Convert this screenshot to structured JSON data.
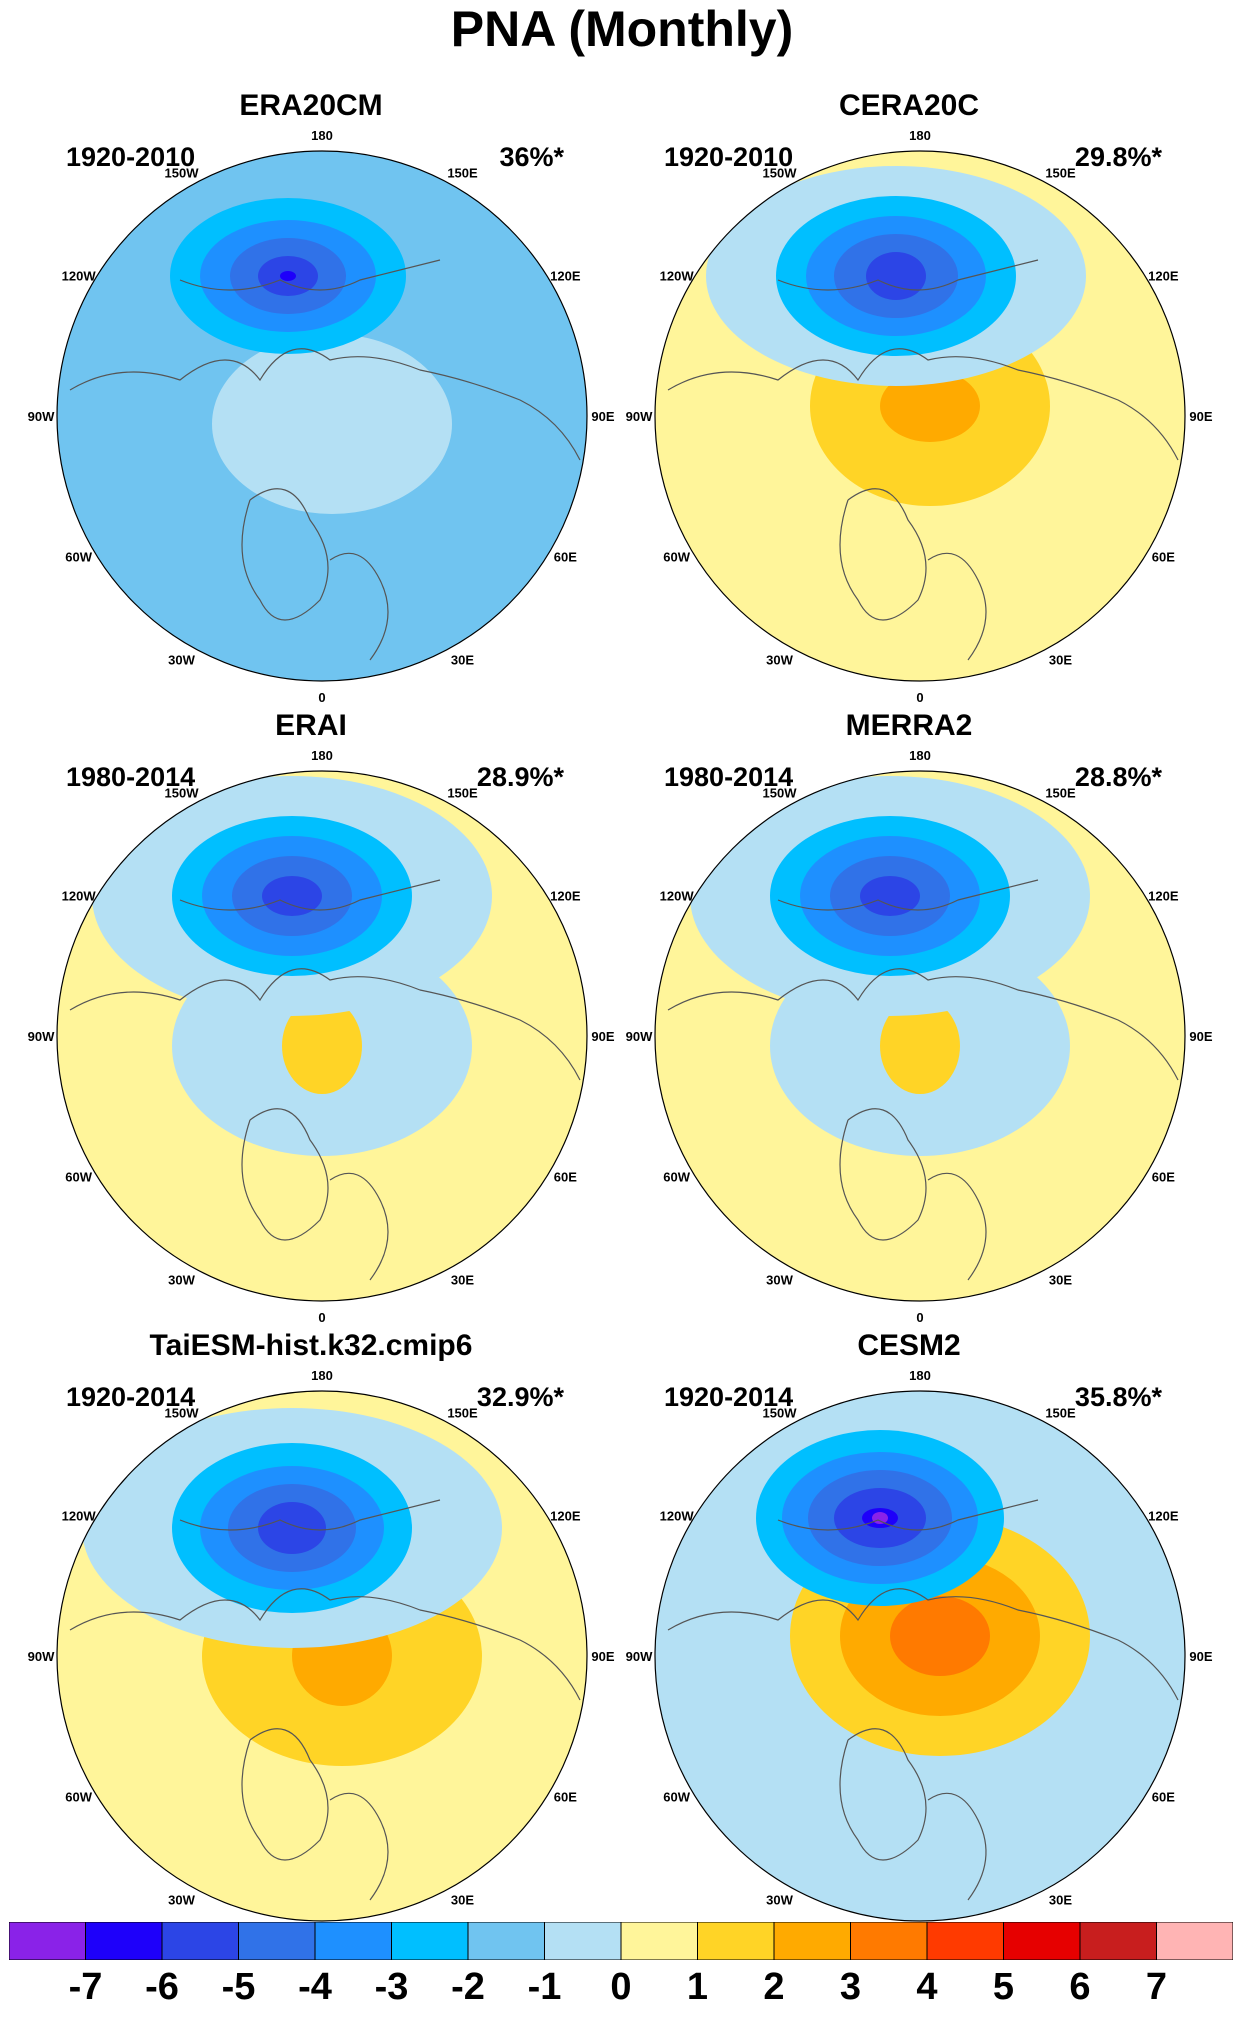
{
  "title": "PNA (Monthly)",
  "colors": {
    "levels": [
      "#8a22e8",
      "#1e00fa",
      "#2c45e6",
      "#3072e8",
      "#1e90ff",
      "#00bfff",
      "#70c4f0",
      "#b4e0f4",
      "#fff59a",
      "#ffd426",
      "#ffaa00",
      "#ff7a00",
      "#ff3a00",
      "#e60000",
      "#c81e1e",
      "#ffb4b4"
    ],
    "land_outline": "#555555"
  },
  "longitude_labels": [
    "180",
    "150E",
    "120E",
    "90E",
    "60E",
    "30E",
    "0",
    "30W",
    "60W",
    "90W",
    "120W",
    "150W"
  ],
  "panels": [
    {
      "name": "ERA20CM",
      "period": "1920-2010",
      "variance": "36%*"
    },
    {
      "name": "CERA20C",
      "period": "1920-2010",
      "variance": "29.8%*"
    },
    {
      "name": "ERAI",
      "period": "1980-2014",
      "variance": "28.9%*"
    },
    {
      "name": "MERRA2",
      "period": "1980-2014",
      "variance": "28.8%*"
    },
    {
      "name": "TaiESM-hist.k32.cmip6",
      "period": "1920-2014",
      "variance": "32.9%*"
    },
    {
      "name": "CESM2",
      "period": "1920-2014",
      "variance": "35.8%*"
    }
  ],
  "colorbar": {
    "labels": [
      "-7",
      "-6",
      "-5",
      "-4",
      "-3",
      "-2",
      "-1",
      "0",
      "1",
      "2",
      "3",
      "4",
      "5",
      "6",
      "7"
    ]
  }
}
